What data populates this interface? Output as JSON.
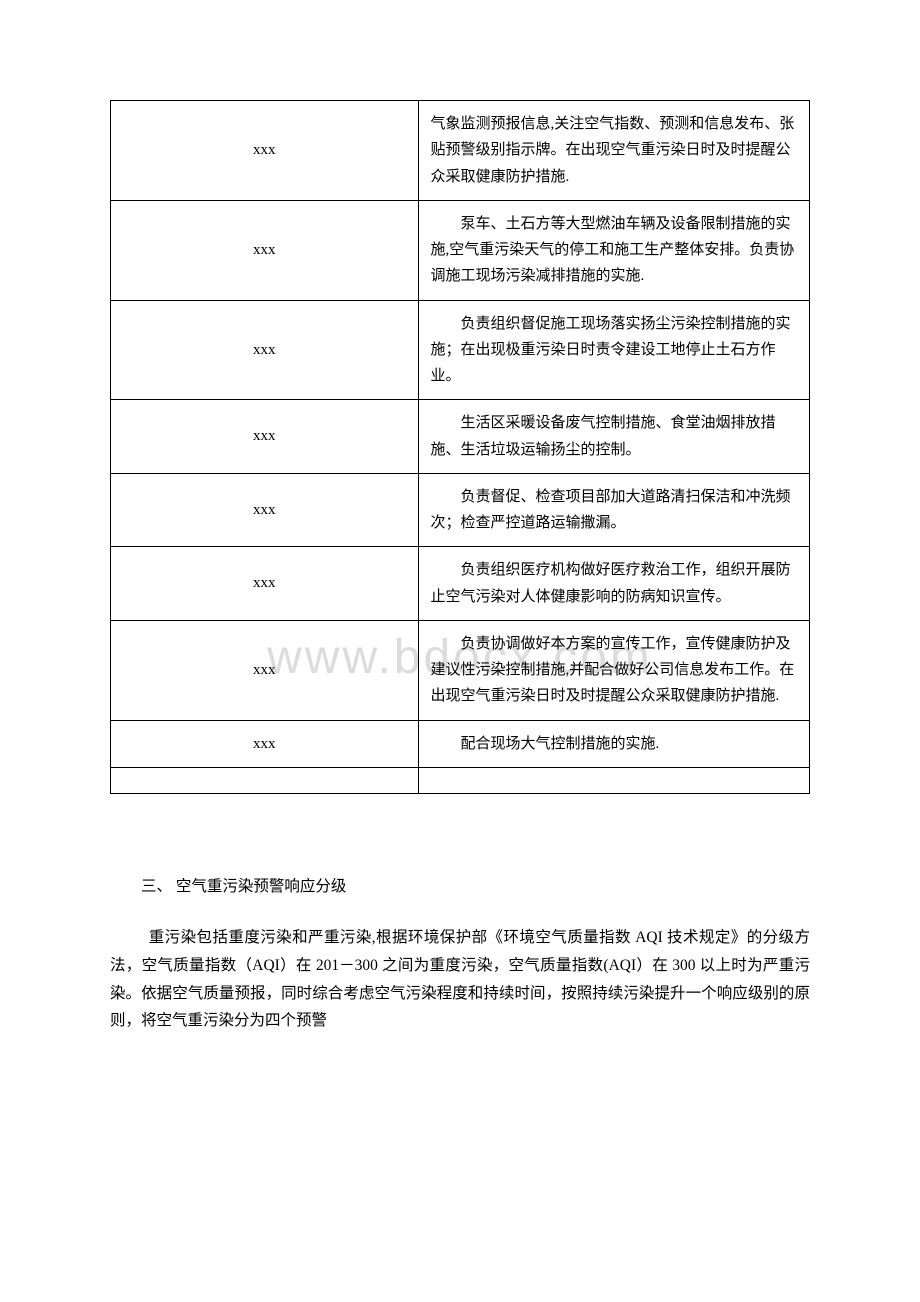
{
  "watermark": "www.bdocx.com",
  "table": {
    "col_left_width_pct": 44,
    "col_right_width_pct": 56,
    "border_color": "#000000",
    "font_size": 15,
    "rows": [
      {
        "left": "xxx",
        "right": "气象监测预报信息,关注空气指数、预测和信息发布、张贴预警级别指示牌。在出现空气重污染日时及时提醒公众采取健康防护措施.",
        "right_indented": false
      },
      {
        "left": "xxx",
        "right": "泵车、土石方等大型燃油车辆及设备限制措施的实施,空气重污染天气的停工和施工生产整体安排。负责协调施工现场污染减排措施的实施.",
        "right_indented": true
      },
      {
        "left": "xxx",
        "right": "负责组织督促施工现场落实扬尘污染控制措施的实施；在出现极重污染日时责令建设工地停止土石方作业。",
        "right_indented": true
      },
      {
        "left": "xxx",
        "right": "生活区采暖设备废气控制措施、食堂油烟排放措施、生活垃圾运输扬尘的控制。",
        "right_indented": true
      },
      {
        "left": "xxx",
        "right": "负责督促、检查项目部加大道路清扫保洁和冲洗频次；检查严控道路运输撒漏。",
        "right_indented": true
      },
      {
        "left": "xxx",
        "right": "负责组织医疗机构做好医疗救治工作，组织开展防止空气污染对人体健康影响的防病知识宣传。",
        "right_indented": true
      },
      {
        "left": "xxx",
        "right": "负责协调做好本方案的宣传工作，宣传健康防护及建议性污染控制措施,并配合做好公司信息发布工作。在出现空气重污染日时及时提醒公众采取健康防护措施.",
        "right_indented": true
      },
      {
        "left": "xxx",
        "right": "配合现场大气控制措施的实施.",
        "right_indented": true
      }
    ]
  },
  "section": {
    "heading": "三、 空气重污染预警响应分级",
    "paragraph": "重污染包括重度污染和严重污染,根据环境保护部《环境空气质量指数 AQI 技术规定》的分级方法，空气质量指数（AQI）在 201－300 之间为重度污染，空气质量指数(AQI）在 300 以上时为严重污染。依据空气质量预报，同时综合考虑空气污染程度和持续时间，按照持续污染提升一个响应级别的原则，将空气重污染分为四个预警"
  },
  "colors": {
    "background": "#ffffff",
    "text": "#000000",
    "watermark": "#dcdcdc"
  }
}
